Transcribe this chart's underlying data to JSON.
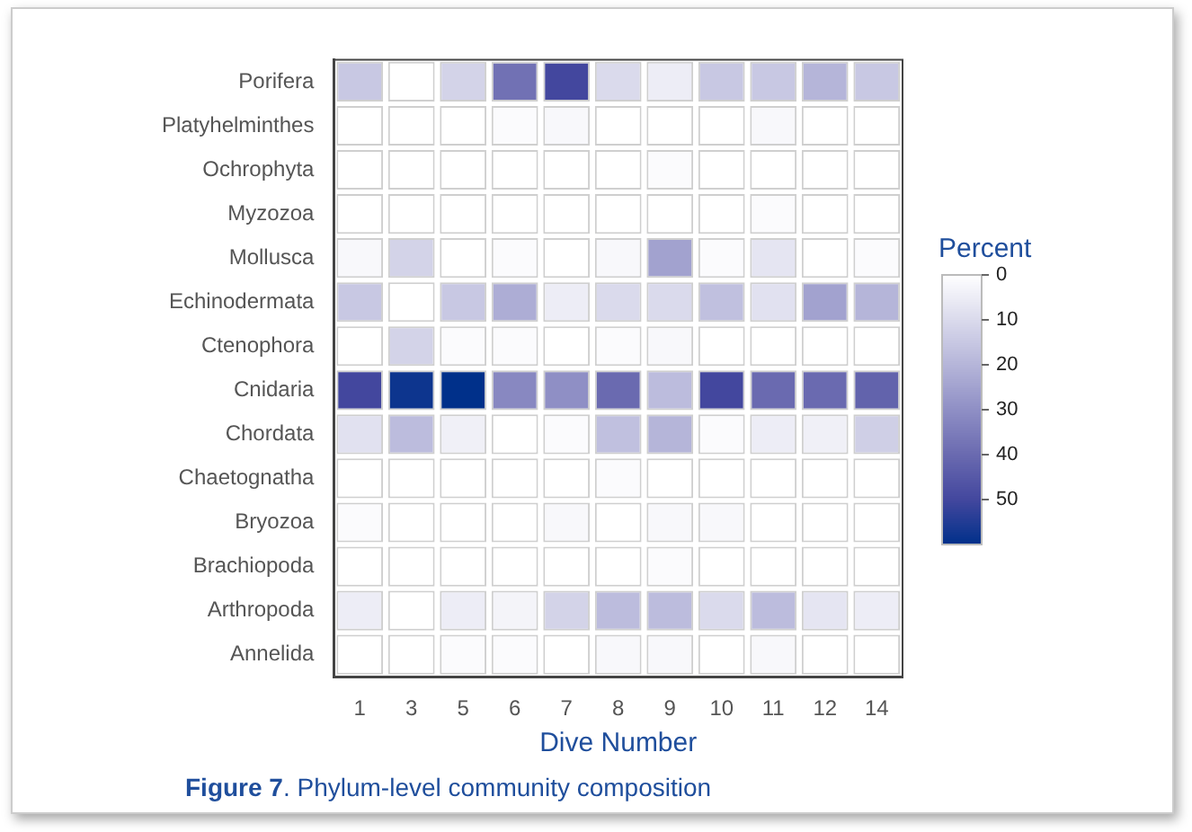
{
  "chart_data": {
    "type": "heatmap",
    "xlabel": "Dive Number",
    "clabel": "Percent",
    "categories": [
      "1",
      "3",
      "5",
      "6",
      "7",
      "8",
      "9",
      "10",
      "11",
      "12",
      "14"
    ],
    "y_categories": [
      "Porifera",
      "Platyhelminthes",
      "Ochrophyta",
      "Myzozoa",
      "Mollusca",
      "Echinodermata",
      "Ctenophora",
      "Cnidaria",
      "Chordata",
      "Chaetognatha",
      "Bryozoa",
      "Brachiopoda",
      "Arthropoda",
      "Annelida"
    ],
    "cells": [
      [
        15,
        0,
        12,
        38,
        50,
        10,
        5,
        15,
        15,
        20,
        15
      ],
      [
        0,
        0,
        0,
        1,
        2,
        0,
        0,
        0,
        2,
        0,
        0
      ],
      [
        0,
        0,
        0,
        0,
        0,
        0,
        1,
        0,
        0,
        0,
        0
      ],
      [
        0,
        0,
        0,
        0,
        0,
        0,
        0,
        0,
        1,
        0,
        0
      ],
      [
        2,
        12,
        0,
        1,
        0,
        2,
        25,
        1,
        7,
        0,
        1
      ],
      [
        15,
        0,
        15,
        22,
        5,
        10,
        10,
        17,
        8,
        25,
        20
      ],
      [
        0,
        12,
        1,
        1,
        0,
        1,
        2,
        0,
        0,
        0,
        0
      ],
      [
        50,
        58,
        60,
        32,
        30,
        40,
        18,
        50,
        40,
        40,
        42
      ],
      [
        8,
        18,
        4,
        0,
        1,
        17,
        20,
        1,
        5,
        4,
        13
      ],
      [
        0,
        0,
        0,
        0,
        0,
        1,
        0,
        0,
        0,
        0,
        0
      ],
      [
        1,
        0,
        0,
        0,
        2,
        0,
        2,
        2,
        0,
        0,
        0
      ],
      [
        0,
        0,
        0,
        0,
        0,
        0,
        1,
        0,
        0,
        0,
        0
      ],
      [
        5,
        0,
        5,
        3,
        12,
        18,
        18,
        10,
        18,
        7,
        5
      ],
      [
        0,
        0,
        1,
        1,
        0,
        2,
        2,
        0,
        2,
        0,
        0
      ]
    ],
    "clim": [
      0,
      60
    ],
    "cticks": [
      0,
      10,
      20,
      30,
      40,
      50
    ],
    "annotations": [
      "Figure 7. Phylum-level community composition"
    ]
  }
}
